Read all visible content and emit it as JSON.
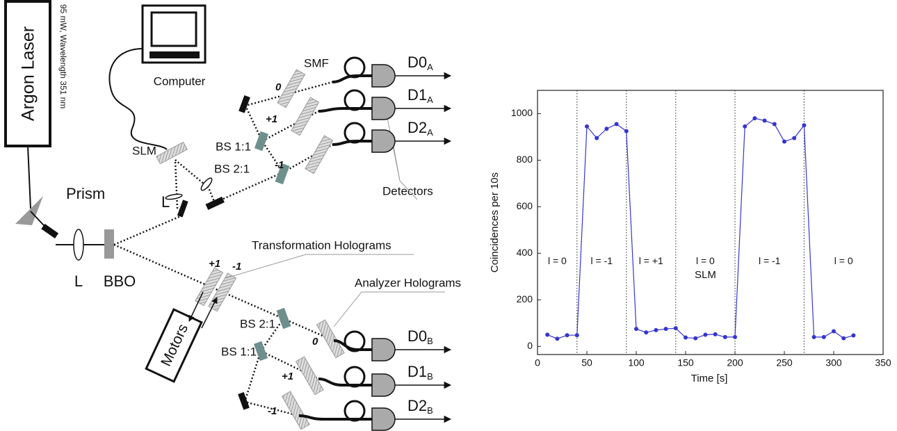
{
  "diagram": {
    "laser": "Argon Laser",
    "laser_spec": "95 mW, Wavelength 351 nm",
    "computer": "Computer",
    "slm": "SLM",
    "prism": "Prism",
    "lens_1": "L",
    "lens_2": "L",
    "crystal": "BBO",
    "fiber": "SMF",
    "detectors": "Detectors",
    "transformation": "Transformation Holograms",
    "analyzer": "Analyzer Holograms",
    "motors": "Motors",
    "arm_a": {
      "orders": [
        "0",
        "+1",
        "-1"
      ],
      "splitters": [
        "BS 1:1",
        "BS 2:1"
      ],
      "detectors": [
        {
          "name": "D0",
          "sub": "A"
        },
        {
          "name": "D1",
          "sub": "A"
        },
        {
          "name": "D2",
          "sub": "A"
        }
      ]
    },
    "arm_b": {
      "transformation_orders": [
        "+1",
        "-1"
      ],
      "splitters": [
        "BS 2:1",
        "BS 1:1"
      ],
      "orders": [
        "0",
        "+1",
        "-1"
      ],
      "detectors": [
        {
          "name": "D0",
          "sub": "B"
        },
        {
          "name": "D1",
          "sub": "B"
        },
        {
          "name": "D2",
          "sub": "B"
        }
      ]
    }
  },
  "chart_data": {
    "type": "line",
    "x_label": "Time [s]",
    "y_label": "Coincidences per 10s",
    "x": [
      10,
      20,
      30,
      40,
      50,
      60,
      70,
      80,
      90,
      100,
      110,
      120,
      130,
      140,
      150,
      160,
      170,
      180,
      190,
      200,
      210,
      220,
      230,
      240,
      250,
      260,
      270,
      280,
      290,
      300,
      310,
      320
    ],
    "values": [
      50,
      33,
      48,
      48,
      945,
      895,
      935,
      955,
      925,
      75,
      60,
      70,
      75,
      78,
      38,
      35,
      50,
      52,
      40,
      40,
      945,
      980,
      970,
      955,
      880,
      895,
      950,
      40,
      40,
      65,
      35,
      47
    ],
    "color": "#3535d0",
    "xlim": [
      0,
      350
    ],
    "xticks": [
      0,
      50,
      100,
      150,
      200,
      250,
      300,
      350
    ],
    "ylim": [
      -35,
      1100
    ],
    "yticks": [
      0,
      200,
      400,
      600,
      800,
      1000
    ],
    "vlines": [
      40,
      90,
      140,
      200,
      270
    ],
    "region_labels": [
      "l = 0",
      "l = -1",
      "l = +1",
      "l = 0",
      "l = -1",
      "l = 0"
    ],
    "slm_label": "SLM"
  }
}
